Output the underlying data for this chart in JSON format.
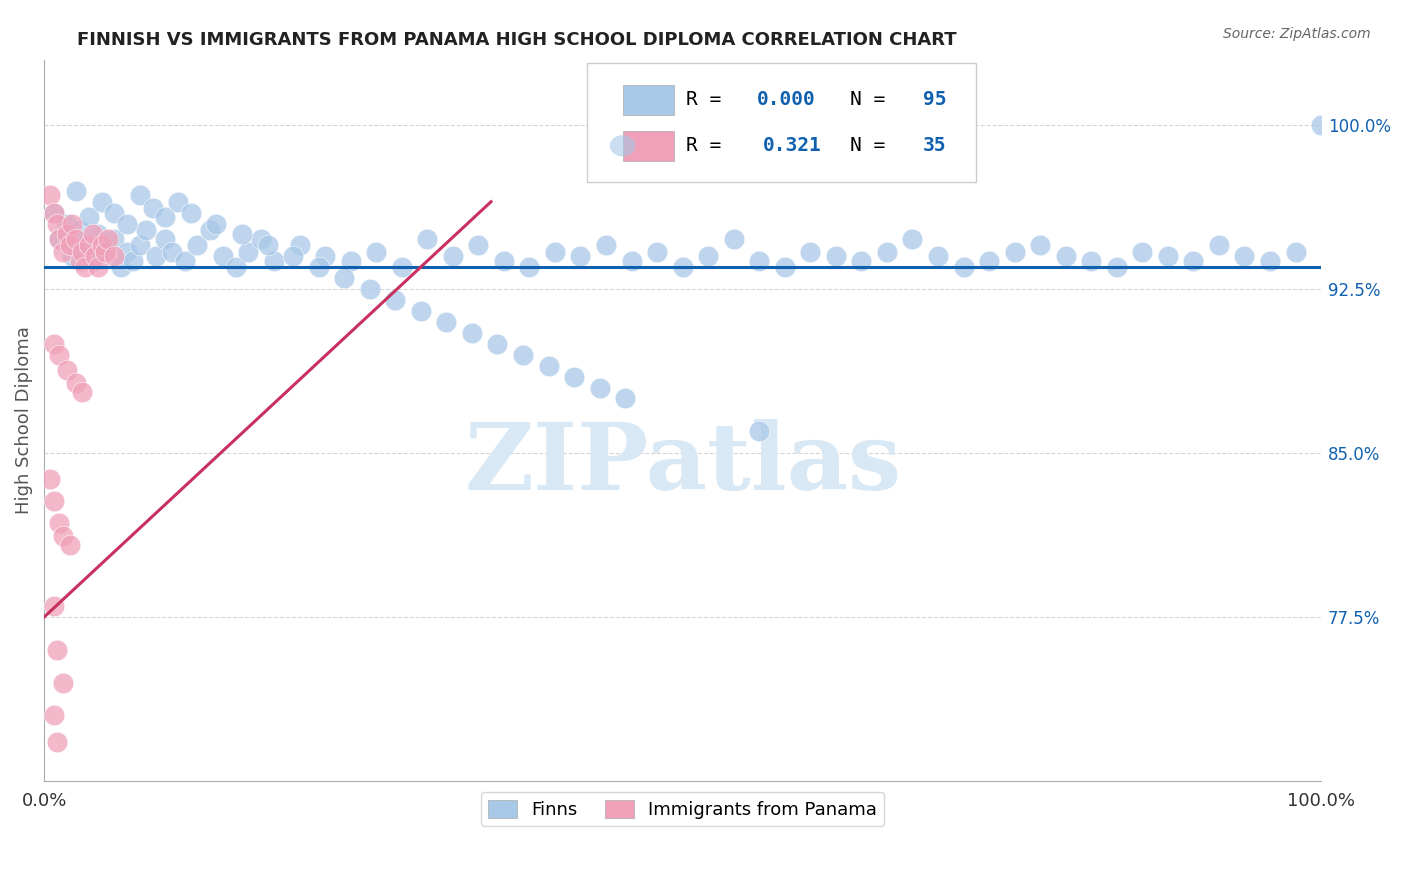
{
  "title": "FINNISH VS IMMIGRANTS FROM PANAMA HIGH SCHOOL DIPLOMA CORRELATION CHART",
  "source": "Source: ZipAtlas.com",
  "ylabel": "High School Diploma",
  "right_ytick_vals": [
    1.0,
    0.925,
    0.85,
    0.775
  ],
  "right_ytick_labels": [
    "100.0%",
    "92.5%",
    "85.0%",
    "77.5%"
  ],
  "blue_R": "0.000",
  "blue_N": "95",
  "pink_R": "0.321",
  "pink_N": "35",
  "legend_label_blue": "Finns",
  "legend_label_pink": "Immigrants from Panama",
  "blue_color": "#a8c8e8",
  "pink_color": "#f0a0b8",
  "blue_line_color": "#1060b0",
  "pink_line_color": "#c83060",
  "legend_text_color": "#1060b0",
  "watermark": "ZIPatlas",
  "watermark_color": "#d8e8f5",
  "title_color": "#222222",
  "source_color": "#666666",
  "grid_color": "#cccccc",
  "ymin": 0.7,
  "ymax": 1.03,
  "xmin": 0.0,
  "xmax": 1.0,
  "blue_line_y": 0.935,
  "pink_line_x0": 0.0,
  "pink_line_x1": 0.35,
  "pink_line_y0": 0.775,
  "pink_line_y1": 0.965,
  "figsize": [
    14.06,
    8.92
  ],
  "dpi": 100,
  "blue_dots_x": [
    0.008,
    0.012,
    0.018,
    0.022,
    0.028,
    0.032,
    0.038,
    0.042,
    0.048,
    0.055,
    0.06,
    0.065,
    0.07,
    0.075,
    0.08,
    0.088,
    0.095,
    0.1,
    0.11,
    0.12,
    0.13,
    0.14,
    0.15,
    0.16,
    0.17,
    0.18,
    0.2,
    0.22,
    0.24,
    0.26,
    0.28,
    0.3,
    0.32,
    0.34,
    0.36,
    0.38,
    0.4,
    0.42,
    0.44,
    0.46,
    0.48,
    0.5,
    0.52,
    0.54,
    0.56,
    0.58,
    0.6,
    0.62,
    0.64,
    0.66,
    0.68,
    0.7,
    0.72,
    0.74,
    0.76,
    0.78,
    0.8,
    0.82,
    0.84,
    0.86,
    0.88,
    0.9,
    0.92,
    0.94,
    0.96,
    0.98,
    1.0,
    0.025,
    0.035,
    0.045,
    0.055,
    0.065,
    0.075,
    0.085,
    0.095,
    0.105,
    0.115,
    0.135,
    0.155,
    0.175,
    0.195,
    0.215,
    0.235,
    0.255,
    0.275,
    0.295,
    0.315,
    0.335,
    0.355,
    0.375,
    0.395,
    0.415,
    0.435,
    0.455,
    0.56
  ],
  "blue_dots_y": [
    0.96,
    0.948,
    0.955,
    0.94,
    0.952,
    0.945,
    0.938,
    0.95,
    0.942,
    0.948,
    0.935,
    0.942,
    0.938,
    0.945,
    0.952,
    0.94,
    0.948,
    0.942,
    0.938,
    0.945,
    0.952,
    0.94,
    0.935,
    0.942,
    0.948,
    0.938,
    0.945,
    0.94,
    0.938,
    0.942,
    0.935,
    0.948,
    0.94,
    0.945,
    0.938,
    0.935,
    0.942,
    0.94,
    0.945,
    0.938,
    0.942,
    0.935,
    0.94,
    0.948,
    0.938,
    0.935,
    0.942,
    0.94,
    0.938,
    0.942,
    0.948,
    0.94,
    0.935,
    0.938,
    0.942,
    0.945,
    0.94,
    0.938,
    0.935,
    0.942,
    0.94,
    0.938,
    0.945,
    0.94,
    0.938,
    0.942,
    1.0,
    0.97,
    0.958,
    0.965,
    0.96,
    0.955,
    0.968,
    0.962,
    0.958,
    0.965,
    0.96,
    0.955,
    0.95,
    0.945,
    0.94,
    0.935,
    0.93,
    0.925,
    0.92,
    0.915,
    0.91,
    0.905,
    0.9,
    0.895,
    0.89,
    0.885,
    0.88,
    0.875,
    0.86
  ],
  "pink_dots_x": [
    0.005,
    0.008,
    0.01,
    0.012,
    0.015,
    0.018,
    0.02,
    0.022,
    0.025,
    0.028,
    0.03,
    0.032,
    0.035,
    0.038,
    0.04,
    0.042,
    0.045,
    0.048,
    0.05,
    0.055,
    0.008,
    0.012,
    0.018,
    0.025,
    0.03,
    0.005,
    0.008,
    0.012,
    0.015,
    0.02,
    0.008,
    0.01,
    0.015,
    0.008,
    0.01
  ],
  "pink_dots_y": [
    0.968,
    0.96,
    0.955,
    0.948,
    0.942,
    0.95,
    0.945,
    0.955,
    0.948,
    0.938,
    0.942,
    0.935,
    0.945,
    0.95,
    0.94,
    0.935,
    0.945,
    0.942,
    0.948,
    0.94,
    0.9,
    0.895,
    0.888,
    0.882,
    0.878,
    0.838,
    0.828,
    0.818,
    0.812,
    0.808,
    0.78,
    0.76,
    0.745,
    0.73,
    0.718
  ]
}
